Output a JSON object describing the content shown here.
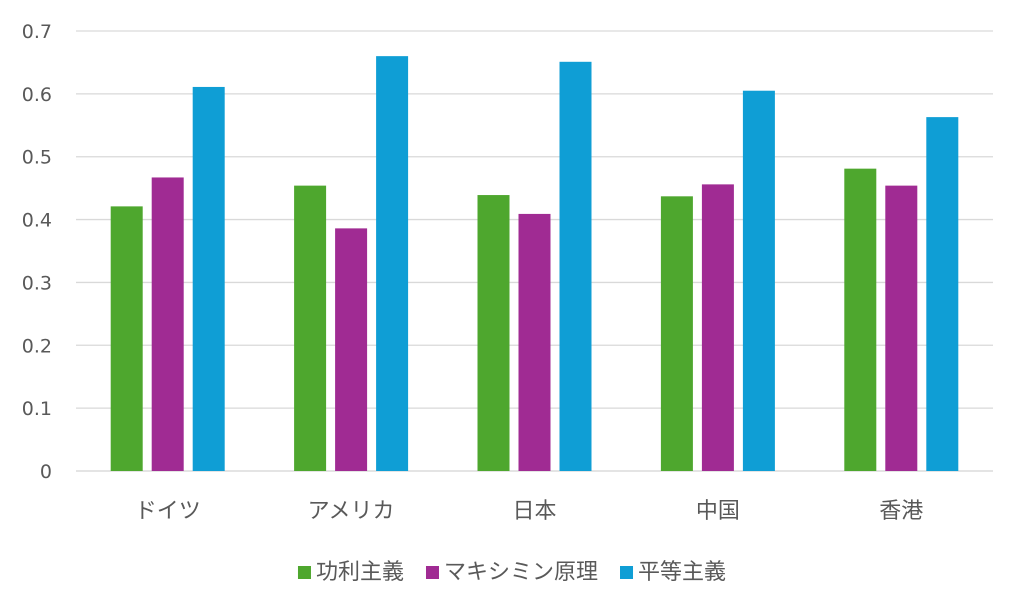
{
  "chart_data": {
    "type": "bar",
    "categories": [
      "ドイツ",
      "アメリカ",
      "日本",
      "中国",
      "香港"
    ],
    "series": [
      {
        "name": "功利主義",
        "color": "#4ea72e",
        "values": [
          0.421,
          0.454,
          0.439,
          0.437,
          0.481
        ]
      },
      {
        "name": "マキシミン原理",
        "color": "#a02b93",
        "values": [
          0.467,
          0.386,
          0.409,
          0.456,
          0.454
        ]
      },
      {
        "name": "平等主義",
        "color": "#0f9ed5",
        "values": [
          0.611,
          0.66,
          0.651,
          0.605,
          0.563
        ]
      }
    ],
    "ylim": [
      0,
      0.7
    ],
    "yticks": [
      "0",
      "0.1",
      "0.2",
      "0.3",
      "0.4",
      "0.5",
      "0.6",
      "0.7"
    ],
    "grid": true,
    "legend": "bottom"
  }
}
